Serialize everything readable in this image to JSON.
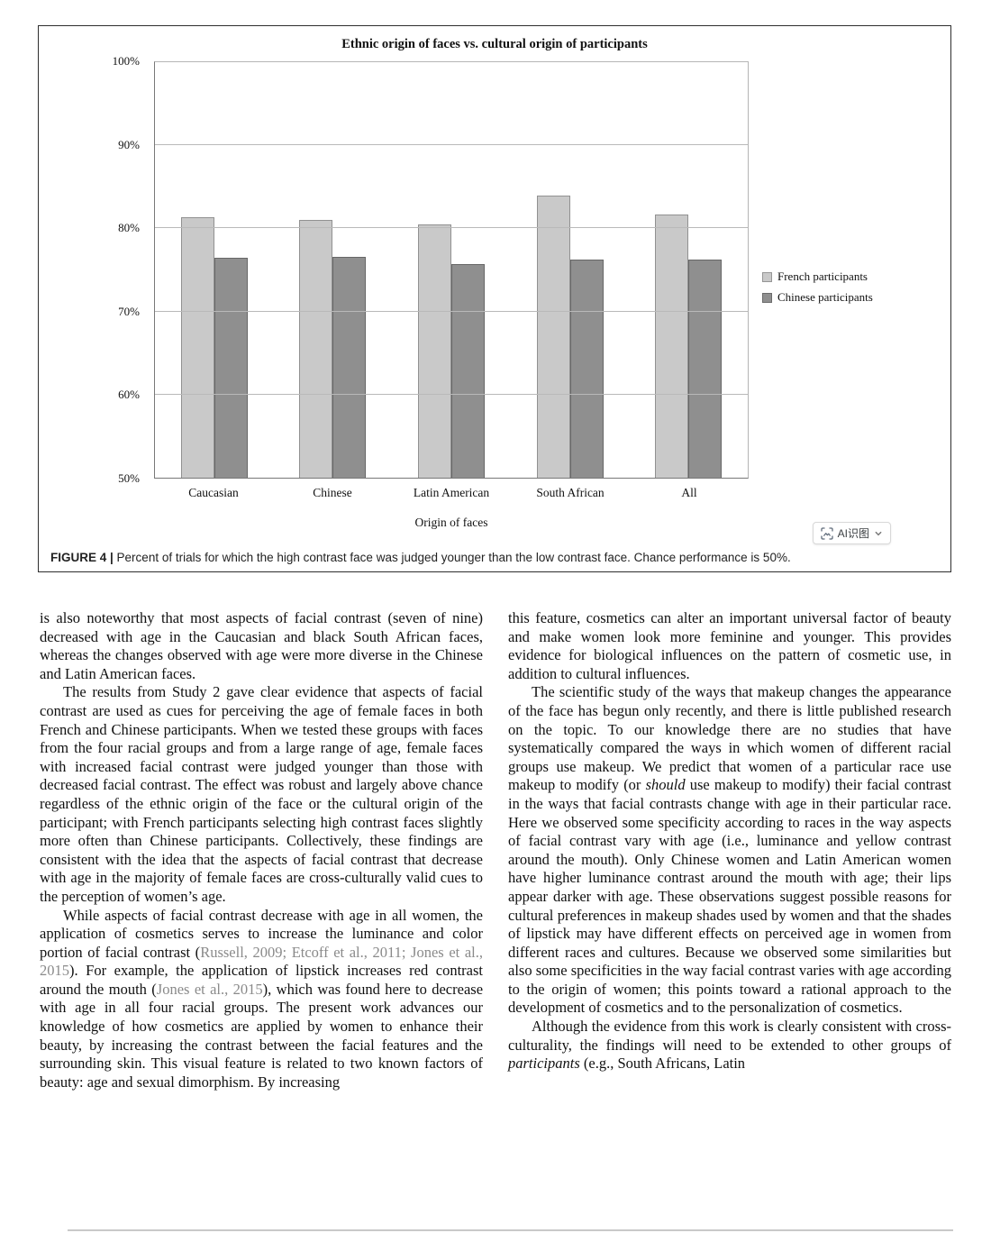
{
  "chart_data": {
    "type": "bar",
    "title": "Ethnic origin of faces vs. cultural origin of participants",
    "categories": [
      "Caucasian",
      "Chinese",
      "Latin American",
      "South African",
      "All"
    ],
    "series": [
      {
        "name": "French participants",
        "color": "#c9c9c9",
        "values": [
          81.3,
          81.0,
          80.5,
          84.0,
          81.7
        ]
      },
      {
        "name": "Chinese participants",
        "color": "#8f8f8f",
        "values": [
          76.5,
          76.6,
          75.7,
          76.2,
          76.2
        ]
      }
    ],
    "xlabel": "Origin of faces",
    "ylabel": "",
    "ylim": [
      50,
      100
    ],
    "yticks": [
      50,
      60,
      70,
      80,
      90,
      100
    ],
    "ytick_suffix": "%",
    "grid": true,
    "legend_position": "right"
  },
  "figure": {
    "caption_label": "FIGURE 4 |",
    "caption_text": " Percent of trials for which the high contrast face was judged younger than the low contrast face. Chance performance is 50%.",
    "ai_badge_label": "AI识图"
  },
  "article": {
    "left_column": [
      {
        "indent": false,
        "segments": [
          {
            "style": "normal",
            "text": "is also noteworthy that most aspects of facial contrast (seven of nine) decreased with age in the Caucasian and black South African faces, whereas the changes observed with age were more diverse in the Chinese and Latin American faces."
          }
        ]
      },
      {
        "indent": true,
        "segments": [
          {
            "style": "normal",
            "text": "The results from Study 2 gave clear evidence that aspects of facial contrast are used as cues for perceiving the age of female faces in both French and Chinese participants. When we tested these groups with faces from the four racial groups and from a large range of age, female faces with increased facial contrast were judged younger than those with decreased facial contrast. The effect was robust and largely above chance regardless of the ethnic origin of the face or the cultural origin of the participant; with French participants selecting high contrast faces slightly more often than Chinese participants. Collectively, these findings are consistent with the idea that the aspects of facial contrast that decrease with age in the majority of female faces are cross-culturally valid cues to the perception of women’s age."
          }
        ]
      },
      {
        "indent": true,
        "segments": [
          {
            "style": "normal",
            "text": "While aspects of facial contrast decrease with age in all women, the application of cosmetics serves to increase the luminance and color portion of facial contrast ("
          },
          {
            "style": "cite",
            "text": "Russell, 2009; Etcoff et al., 2011; Jones et al., 2015"
          },
          {
            "style": "normal",
            "text": "). For example, the application of lipstick increases red contrast around the mouth ("
          },
          {
            "style": "cite",
            "text": "Jones et al., 2015"
          },
          {
            "style": "normal",
            "text": "), which was found here to decrease with age in all four racial groups. The present work advances our knowledge of how cosmetics are applied by women to enhance their beauty, by increasing the contrast between the facial features and the surrounding skin. This visual feature is related to two known factors of beauty: age and sexual dimorphism. By increasing"
          }
        ]
      }
    ],
    "right_column": [
      {
        "indent": false,
        "segments": [
          {
            "style": "normal",
            "text": "this feature, cosmetics can alter an important universal factor of beauty and make women look more feminine and younger. This provides evidence for biological influences on the pattern of cosmetic use, in addition to cultural influences."
          }
        ]
      },
      {
        "indent": true,
        "segments": [
          {
            "style": "normal",
            "text": "The scientific study of the ways that makeup changes the appearance of the face has begun only recently, and there is little published research on the topic. To our knowledge there are no studies that have systematically compared the ways in which women of different racial groups use makeup. We predict that women of a particular race use makeup to modify (or "
          },
          {
            "style": "italic",
            "text": "should"
          },
          {
            "style": "normal",
            "text": " use makeup to modify) their facial contrast in the ways that facial contrasts change with age in their particular race. Here we observed some specificity according to races in the way aspects of facial contrast vary with age (i.e., luminance and yellow contrast around the mouth). Only Chinese women and Latin American women have higher luminance contrast around the mouth with age; their lips appear darker with age. These observations suggest possible reasons for cultural preferences in makeup shades used by women and that the shades of lipstick may have different effects on perceived age in women from different races and cultures. Because we observed some similarities but also some specificities in the way facial contrast varies with age according to the origin of women; this points toward a rational approach to the development of cosmetics and to the personalization of cosmetics."
          }
        ]
      },
      {
        "indent": true,
        "segments": [
          {
            "style": "normal",
            "text": "Although the evidence from this work is clearly consistent with cross-culturality, the findings will need to be extended to other groups of "
          },
          {
            "style": "italic",
            "text": "participants"
          },
          {
            "style": "normal",
            "text": " (e.g., South Africans, Latin"
          }
        ]
      }
    ]
  }
}
